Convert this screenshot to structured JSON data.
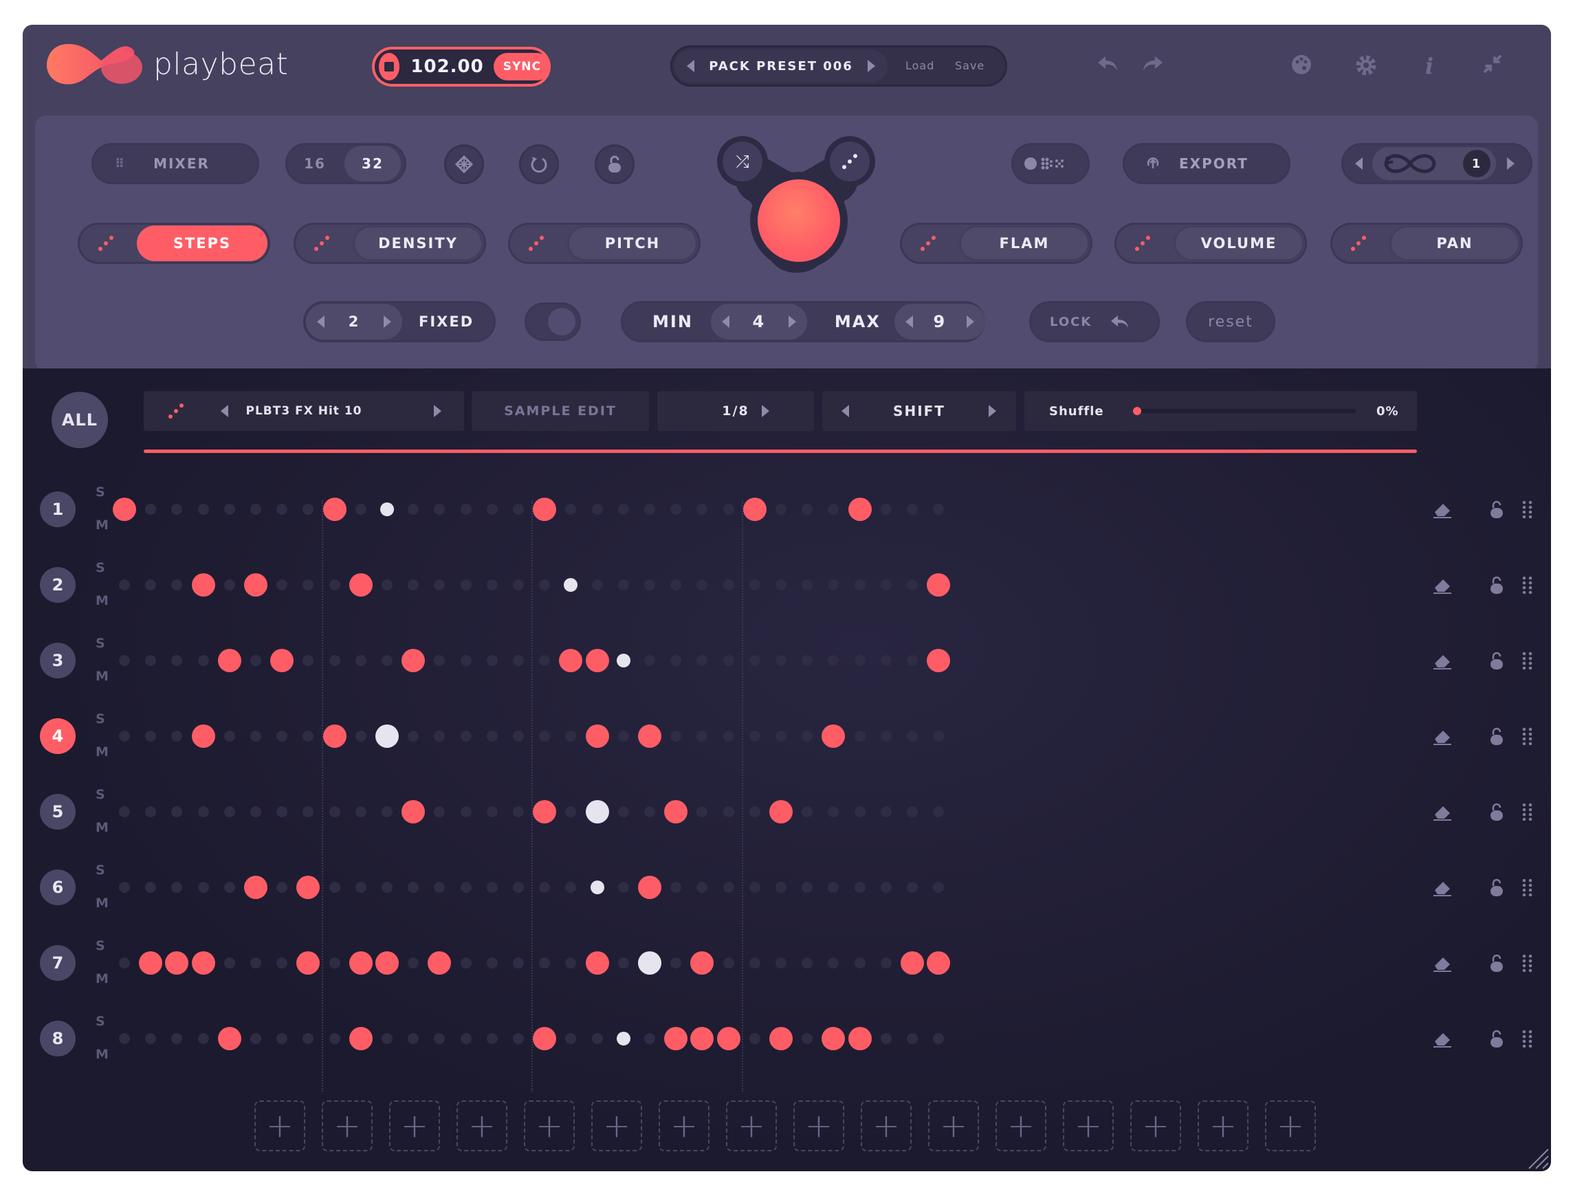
{
  "header": {
    "app_name": "playbeat",
    "bpm": "102.00",
    "sync_label": "SYNC",
    "preset_name": "PACK PRESET 006",
    "load_label": "Load",
    "save_label": "Save"
  },
  "panel": {
    "mixer_label": "MIXER",
    "steps16_label": "16",
    "steps32_label": "32",
    "export_label": "EXPORT",
    "loop_count": "1",
    "params": [
      {
        "label": "STEPS",
        "active": true
      },
      {
        "label": "DENSITY",
        "active": false
      },
      {
        "label": "PITCH",
        "active": false
      },
      {
        "label": "FLAM",
        "active": false
      },
      {
        "label": "VOLUME",
        "active": false
      },
      {
        "label": "PAN",
        "active": false
      }
    ],
    "fixed_value": "2",
    "fixed_label": "FIXED",
    "min_label": "MIN",
    "min_value": "4",
    "max_label": "MAX",
    "max_value": "9",
    "lock_label": "LOCK",
    "reset_label": "reset"
  },
  "toolbar": {
    "all_label": "ALL",
    "sample_name": "PLBT3 FX Hit 10",
    "sample_edit_label": "SAMPLE EDIT",
    "division": "1/8",
    "shift_label": "SHIFT",
    "shuffle_label": "Shuffle",
    "shuffle_value": "0%",
    "shuffle_fraction": 0.0
  },
  "rows": [
    {
      "num": "1",
      "s": "S",
      "m": "M",
      "selected": false
    },
    {
      "num": "2",
      "s": "S",
      "m": "M",
      "selected": false
    },
    {
      "num": "3",
      "s": "S",
      "m": "M",
      "selected": false
    },
    {
      "num": "4",
      "s": "S",
      "m": "M",
      "selected": true
    },
    {
      "num": "5",
      "s": "S",
      "m": "M",
      "selected": false
    },
    {
      "num": "6",
      "s": "S",
      "m": "M",
      "selected": false
    },
    {
      "num": "7",
      "s": "S",
      "m": "M",
      "selected": false
    },
    {
      "num": "8",
      "s": "S",
      "m": "M",
      "selected": false
    }
  ],
  "grid": [
    "R.......R.w.....R.......R...R...",
    "...R.R...R.......s.............R",
    "....R.R....R.....RRs...........R",
    "...R....R.W.......R.R......R....",
    "...........R....R.W..R...R......",
    ".....R.R..........s.R...........",
    ".RRR...R.RR.R.....R.W.R.......RR",
    "....R....R......R..s.RRR.R.RR..."
  ],
  "add_slots": 16,
  "colors": {
    "accent": "#ff5d66",
    "step_off": "#2f2c45",
    "playhead": "#e6e4ee"
  }
}
